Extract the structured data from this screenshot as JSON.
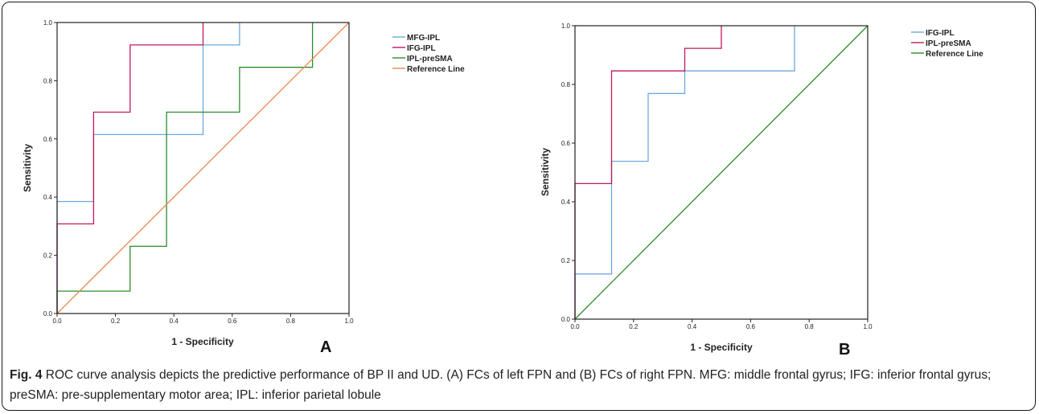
{
  "chart_data": [
    {
      "type": "line",
      "panel": "A",
      "xlabel": "1 - Specificity",
      "ylabel": "Sensitivity",
      "xlim": [
        0,
        1
      ],
      "ylim": [
        0,
        1
      ],
      "xticks": [
        "0.0",
        "0.2",
        "0.4",
        "0.6",
        "0.8",
        "1.0"
      ],
      "yticks": [
        "0.0",
        "0.2",
        "0.4",
        "0.6",
        "0.8",
        "1.0"
      ],
      "legend_position": "right",
      "series": [
        {
          "name": "MFG-IPL",
          "color": "#6fa8dc",
          "step": true,
          "x": [
            0,
            0,
            0.125,
            0.125,
            0.5,
            0.5,
            0.625,
            0.625
          ],
          "y": [
            0,
            0.385,
            0.385,
            0.615,
            0.615,
            0.923,
            0.923,
            1.0
          ]
        },
        {
          "name": "IFG-IPL",
          "color": "#c2185b",
          "step": true,
          "x": [
            0,
            0,
            0.125,
            0.125,
            0.25,
            0.25,
            0.5,
            0.5
          ],
          "y": [
            0,
            0.308,
            0.308,
            0.692,
            0.692,
            0.923,
            0.923,
            1.0
          ]
        },
        {
          "name": "IPL-preSMA",
          "color": "#2e8b2e",
          "step": true,
          "x": [
            0,
            0,
            0.25,
            0.25,
            0.375,
            0.375,
            0.625,
            0.625,
            0.875,
            0.875
          ],
          "y": [
            0,
            0.077,
            0.077,
            0.231,
            0.231,
            0.692,
            0.692,
            0.846,
            0.846,
            1.0
          ]
        },
        {
          "name": "Reference Line",
          "color": "#e8894a",
          "step": false,
          "x": [
            0,
            1
          ],
          "y": [
            0,
            1
          ]
        }
      ]
    },
    {
      "type": "line",
      "panel": "B",
      "xlabel": "1 - Specificity",
      "ylabel": "Sensitivity",
      "xlim": [
        0,
        1
      ],
      "ylim": [
        0,
        1
      ],
      "xticks": [
        "0.0",
        "0.2",
        "0.4",
        "0.6",
        "0.8",
        "1.0"
      ],
      "yticks": [
        "0.0",
        "0.2",
        "0.4",
        "0.6",
        "0.8",
        "1.0"
      ],
      "legend_position": "right",
      "series": [
        {
          "name": "IFG-IPL",
          "color": "#6fa8dc",
          "step": true,
          "x": [
            0,
            0,
            0.125,
            0.125,
            0.25,
            0.25,
            0.375,
            0.375,
            0.75,
            0.75
          ],
          "y": [
            0,
            0.154,
            0.154,
            0.538,
            0.538,
            0.769,
            0.769,
            0.846,
            0.846,
            1.0
          ]
        },
        {
          "name": "IPL-preSMA",
          "color": "#c2185b",
          "step": true,
          "x": [
            0,
            0,
            0.125,
            0.125,
            0.375,
            0.375,
            0.5,
            0.5
          ],
          "y": [
            0,
            0.462,
            0.462,
            0.846,
            0.846,
            0.923,
            0.923,
            1.0
          ]
        },
        {
          "name": "Reference Line",
          "color": "#2e8b2e",
          "step": false,
          "x": [
            0,
            1
          ],
          "y": [
            0,
            1
          ]
        }
      ]
    }
  ],
  "caption": {
    "fig_label": "Fig. 4",
    "text": " ROC curve analysis depicts the predictive performance of BP II and UD. (A) FCs of left FPN and (B) FCs of right FPN. MFG: middle frontal gyrus; IFG: inferior frontal gyrus; preSMA: pre-supplementary motor area; IPL: inferior parietal lobule"
  }
}
